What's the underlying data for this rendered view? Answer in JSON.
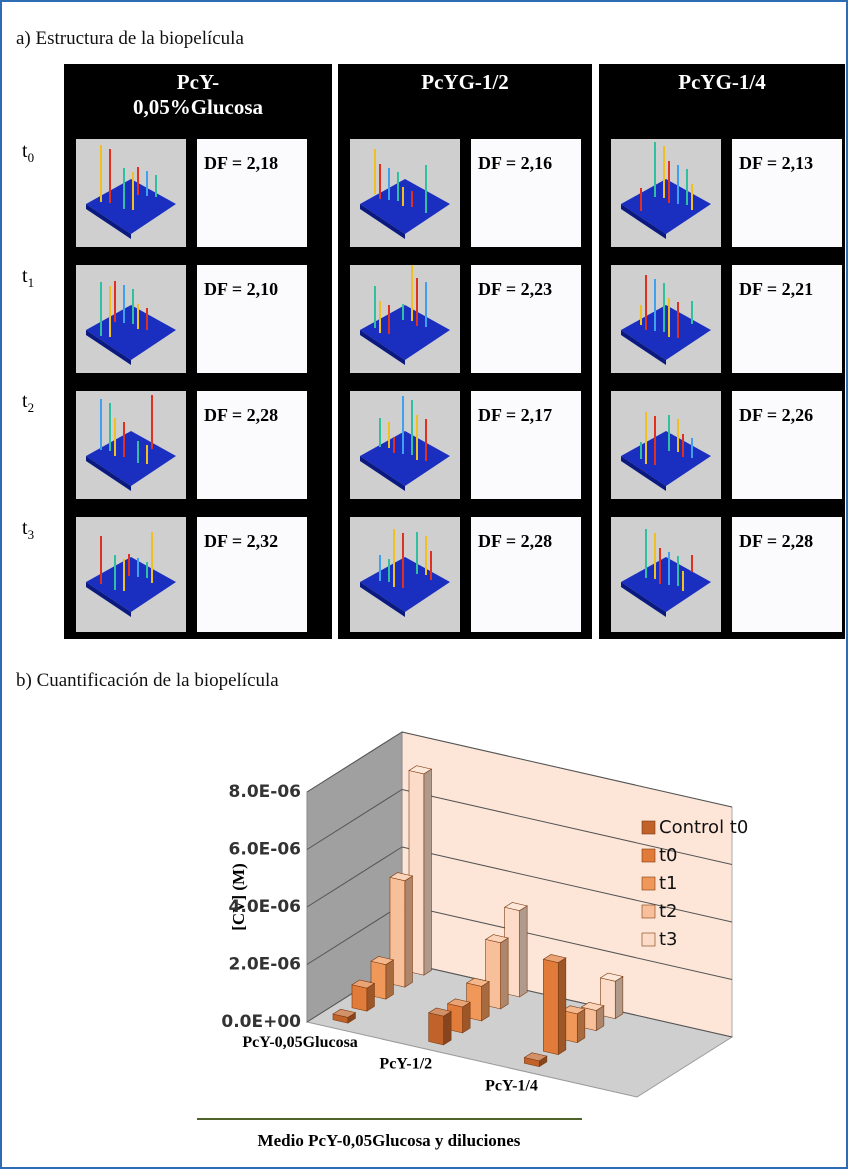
{
  "panel_a": {
    "title": "a) Estructura de la biopelícula",
    "columns": [
      {
        "header": "PcY-0,05%Glucosa",
        "df": [
          "DF = 2,18",
          "DF = 2,10",
          "DF = 2,28",
          "DF = 2,32"
        ]
      },
      {
        "header": "PcYG-1/2",
        "df": [
          "DF = 2,16",
          "DF = 2,23",
          "DF = 2,17",
          "DF = 2,28"
        ]
      },
      {
        "header": "PcYG-1/4",
        "df": [
          "DF = 2,13",
          "DF = 2,21",
          "DF = 2,26",
          "DF = 2,28"
        ]
      }
    ],
    "rows": [
      {
        "symbol": "t",
        "subscript": "0"
      },
      {
        "symbol": "t",
        "subscript": "1"
      },
      {
        "symbol": "t",
        "subscript": "2"
      },
      {
        "symbol": "t",
        "subscript": "3"
      }
    ]
  },
  "panel_b": {
    "title": "b) Cuantificación de la biopelícula"
  },
  "chart_data": {
    "type": "bar3d",
    "ylabel": "[CV] (M)",
    "xlabel": "Medio PcY-0,05Glucosa y diluciones",
    "categories": [
      "PcY-0,05Glucosa",
      "PcY-1/2",
      "PcY-1/4"
    ],
    "series": [
      {
        "name": "Control t0",
        "color": "#c0622a",
        "values": [
          2e-07,
          1e-06,
          2e-07
        ]
      },
      {
        "name": "t0",
        "color": "#e07b39",
        "values": [
          8e-07,
          9e-07,
          3.2e-06
        ]
      },
      {
        "name": "t1",
        "color": "#f0985a",
        "values": [
          1.2e-06,
          1.2e-06,
          1e-06
        ]
      },
      {
        "name": "t2",
        "color": "#f8c09a",
        "values": [
          3.7e-06,
          2.3e-06,
          7e-07
        ]
      },
      {
        "name": "t3",
        "color": "#fcdcc8",
        "values": [
          7e-06,
          3e-06,
          1.3e-06
        ]
      }
    ],
    "ylim": [
      0,
      8e-06
    ],
    "yticks": [
      {
        "value": 0,
        "label": "0.0E+00"
      },
      {
        "value": 2e-06,
        "label": "2.0E-06"
      },
      {
        "value": 4e-06,
        "label": "4.0E-06"
      },
      {
        "value": 6e-06,
        "label": "6.0E-06"
      },
      {
        "value": 8e-06,
        "label": "8.0E-06"
      }
    ],
    "grid": true,
    "legend": "right"
  }
}
